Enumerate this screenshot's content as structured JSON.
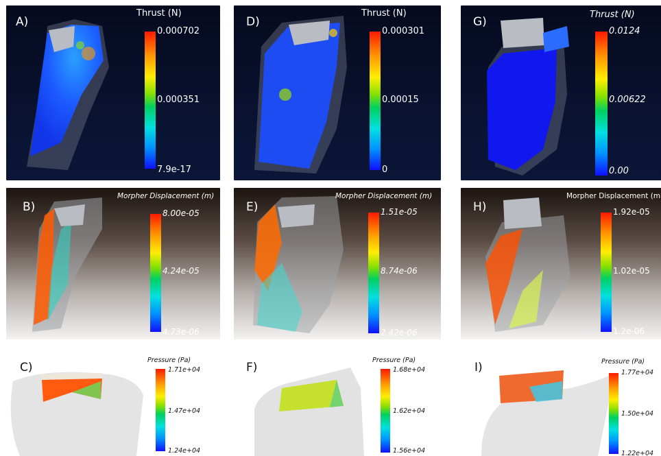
{
  "panels": {
    "A": {
      "label": "A)",
      "title": "Thrust (N)",
      "ticks": [
        "0.000702",
        "0.000351",
        "7.9e-17"
      ]
    },
    "D": {
      "label": "D)",
      "title": "Thrust (N)",
      "ticks": [
        "0.000301",
        "0.00015",
        "0"
      ]
    },
    "G": {
      "label": "G)",
      "title": "Thrust (N)",
      "ticks": [
        "0.0124",
        "0.00622",
        "0.00"
      ]
    },
    "B": {
      "label": "B)",
      "title": "Morpher Displacement (m)",
      "ticks": [
        "8.00e-05",
        "4.24e-05",
        "4.73e-06"
      ]
    },
    "E": {
      "label": "E)",
      "title": "Morpher Displacement (m)",
      "ticks": [
        "1.51e-05",
        "8.74e-06",
        "2.42e-06"
      ]
    },
    "H": {
      "label": "H)",
      "title": "Morpher Displacement (m)",
      "ticks": [
        "1.92e-05",
        "1.02e-05",
        "1.2e-06"
      ]
    },
    "C": {
      "label": "C)",
      "title": "Pressure (Pa)",
      "ticks": [
        "1.71e+04",
        "1.47e+04",
        "1.24e+04"
      ]
    },
    "F": {
      "label": "F)",
      "title": "Pressure (Pa)",
      "ticks": [
        "1.68e+04",
        "1.62e+04",
        "1.56e+04"
      ]
    },
    "I": {
      "label": "I)",
      "title": "Pressure (Pa)",
      "ticks": [
        "1.77e+04",
        "1.50e+04",
        "1.22e+04"
      ]
    }
  },
  "colors": {
    "colormap_top": "#ff1a00",
    "colormap_bottom": "#1010ff"
  }
}
